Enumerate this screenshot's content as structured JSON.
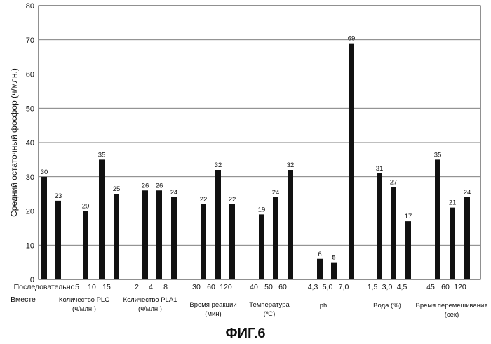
{
  "chart_data": {
    "type": "bar",
    "ylabel": "Средний остаточный фосфор (ч/млн.)",
    "ylim": [
      0,
      80
    ],
    "yticks": [
      0,
      10,
      20,
      30,
      40,
      50,
      60,
      70,
      80
    ],
    "grid": "horizontal",
    "bar_color": "#111111",
    "figure_caption": "ФИГ.6",
    "x": [
      "Последовательно",
      "Вместе",
      "5",
      "10",
      "15",
      "2",
      "4",
      "8",
      "30",
      "60",
      "120",
      "40",
      "50",
      "60",
      "4,3",
      "5,0",
      "7,0",
      "1,5",
      "3,0",
      "4,5",
      "45",
      "60",
      "120"
    ],
    "values": [
      30,
      23,
      20,
      35,
      25,
      26,
      26,
      24,
      22,
      32,
      22,
      19,
      24,
      32,
      6,
      5,
      69,
      31,
      27,
      17,
      35,
      21,
      24
    ],
    "data_labels": [
      "30",
      "23",
      "20",
      "35",
      "25",
      "26",
      "26",
      "24",
      "22",
      "32",
      "22",
      "19",
      "24",
      "32",
      "6",
      "5",
      "69",
      "31",
      "27",
      "17",
      "35",
      "21",
      "24"
    ],
    "groups": [
      {
        "label_lines": [
          "Количество PLC",
          "(ч/млн.)"
        ]
      },
      {
        "label_lines": [
          "Количество PLA1",
          "(ч/млн.)"
        ]
      },
      {
        "label_lines": [
          "Время реакции",
          "(мин)"
        ]
      },
      {
        "label_lines": [
          "Температура",
          "(ºC)"
        ]
      },
      {
        "label_lines": [
          "ph"
        ]
      },
      {
        "label_lines": [
          "Вода (%)"
        ]
      },
      {
        "label_lines": [
          "Время перемешивания",
          "(сек)"
        ]
      }
    ]
  }
}
